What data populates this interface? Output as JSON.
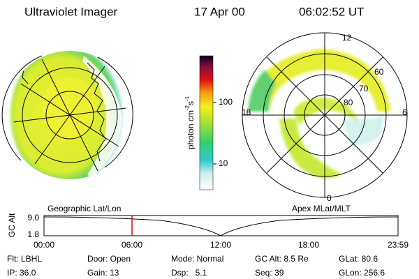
{
  "header": {
    "instrument": "Ultraviolet Imager",
    "date": "17 Apr 00",
    "time": "06:02:52 UT"
  },
  "colorbar": {
    "unit": [
      "photon cm",
      "-2",
      "s",
      "-1"
    ],
    "ticks": [
      "100",
      "10"
    ]
  },
  "polar_plot": {
    "mlt_labels": [
      "12",
      "18",
      "6",
      "0"
    ],
    "mlat_labels": [
      "60",
      "70",
      "80"
    ]
  },
  "orbit_strip": {
    "left_title": "Geographic Lat/Lon",
    "right_title": "Apex MLat/MLT",
    "y_label": "GC Alt",
    "y_ticks": [
      "9.0",
      "1.8"
    ],
    "x_ticks": [
      "00:00",
      "06:00",
      "12:00",
      "18:00",
      "23:59"
    ]
  },
  "status": [
    [
      "Flt: LBHL",
      "Door: Open",
      "Mode: Normal",
      "GC Alt: 8.5 Re",
      "GLat: 80.6"
    ],
    [
      "IP: 36.0",
      "Gain: 13",
      "Dsp:   5.1",
      "Seq: 39",
      "GLon: 256.6"
    ]
  ]
}
